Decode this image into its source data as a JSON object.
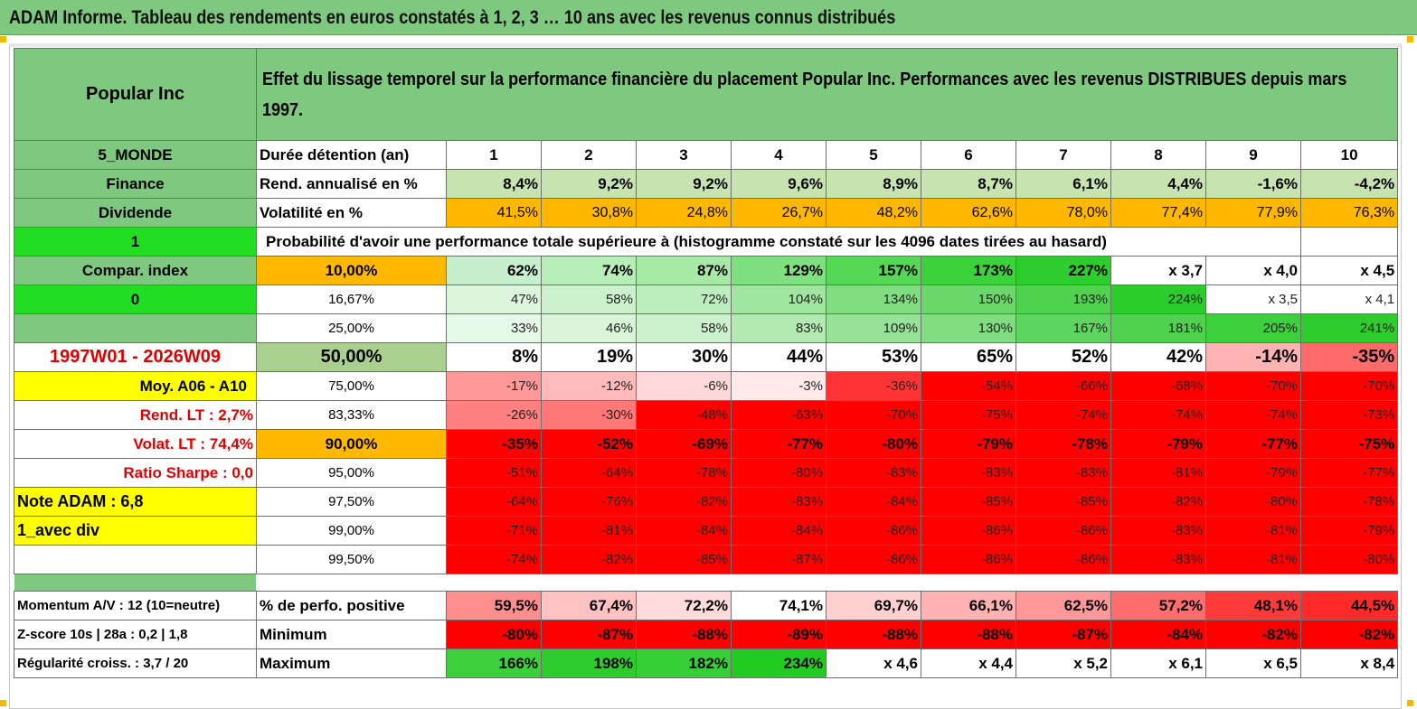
{
  "title": "ADAM Informe. Tableau des rendements en euros constatés à 1, 2, 3 … 10 ans avec les revenus connus distribués",
  "header": {
    "name": "Popular Inc",
    "description": "Effet du lissage temporel sur la performance financière du placement Popular Inc. Performances avec les revenus DISTRIBUES depuis mars 1997."
  },
  "colors": {
    "label_green": "#7ec87f",
    "bright_green": "#22dd22",
    "orange": "#ffb800",
    "yellow": "#ffff00",
    "light_green": "#c6e3b0",
    "olive_green": "#a9d08e",
    "red": "#ff0000"
  },
  "rows": [
    {
      "left": "5_MONDE",
      "label": "Durée détention (an)",
      "cells": [
        "1",
        "2",
        "3",
        "4",
        "5",
        "6",
        "7",
        "8",
        "9",
        "10"
      ]
    },
    {
      "left": "Finance",
      "label": "Rend. annualisé en %",
      "cells": [
        "8,4%",
        "9,2%",
        "9,2%",
        "9,6%",
        "8,9%",
        "8,7%",
        "6,1%",
        "4,4%",
        "-1,6%",
        "-4,2%"
      ]
    },
    {
      "left": "Dividende",
      "label": "Volatilité en %",
      "cells": [
        "41,5%",
        "30,8%",
        "24,8%",
        "26,7%",
        "48,2%",
        "62,6%",
        "78,0%",
        "77,4%",
        "77,9%",
        "76,3%"
      ]
    },
    {
      "left": "1",
      "label": "Probabilité d'avoir une performance totale supérieure à (histogramme constaté sur les 4096 dates tirées au hasard)"
    },
    {
      "left": "Compar. index",
      "label": "10,00%",
      "cells": [
        "62%",
        "74%",
        "87%",
        "129%",
        "157%",
        "173%",
        "227%",
        "x 3,7",
        "x 4,0",
        "x 4,5"
      ]
    },
    {
      "left": "0",
      "label": "16,67%",
      "cells": [
        "47%",
        "58%",
        "72%",
        "104%",
        "134%",
        "150%",
        "193%",
        "224%",
        "x 3,5",
        "x 4,1"
      ]
    },
    {
      "left": "",
      "label": "25,00%",
      "cells": [
        "33%",
        "46%",
        "58%",
        "83%",
        "109%",
        "130%",
        "167%",
        "181%",
        "205%",
        "241%"
      ]
    },
    {
      "left": "1997W01 - 2026W09",
      "label": "50,00%",
      "cells": [
        "8%",
        "19%",
        "30%",
        "44%",
        "53%",
        "65%",
        "52%",
        "42%",
        "-14%",
        "-35%"
      ]
    },
    {
      "left": "Moy. A06 - A10",
      "label": "75,00%",
      "cells": [
        "-17%",
        "-12%",
        "-6%",
        "-3%",
        "-36%",
        "-54%",
        "-66%",
        "-68%",
        "-70%",
        "-70%"
      ]
    },
    {
      "left": "Rend. LT :   2,7%",
      "label": "83,33%",
      "cells": [
        "-26%",
        "-30%",
        "-48%",
        "-63%",
        "-70%",
        "-75%",
        "-74%",
        "-74%",
        "-74%",
        "-73%"
      ]
    },
    {
      "left": "Volat. LT :   74,4%",
      "label": "90,00%",
      "cells": [
        "-35%",
        "-52%",
        "-69%",
        "-77%",
        "-80%",
        "-79%",
        "-78%",
        "-79%",
        "-77%",
        "-75%"
      ]
    },
    {
      "left": "Ratio Sharpe :    0,0",
      "label": "95,00%",
      "cells": [
        "-51%",
        "-64%",
        "-78%",
        "-80%",
        "-83%",
        "-83%",
        "-83%",
        "-81%",
        "-79%",
        "-77%"
      ]
    },
    {
      "left": "Note ADAM : 6,8",
      "label": "97,50%",
      "cells": [
        "-64%",
        "-76%",
        "-82%",
        "-83%",
        "-84%",
        "-85%",
        "-85%",
        "-82%",
        "-80%",
        "-78%"
      ]
    },
    {
      "left": "1_avec div",
      "label": "99,00%",
      "cells": [
        "-71%",
        "-81%",
        "-84%",
        "-84%",
        "-86%",
        "-86%",
        "-86%",
        "-83%",
        "-81%",
        "-79%"
      ]
    },
    {
      "left": "",
      "label": "99,50%",
      "cells": [
        "-74%",
        "-82%",
        "-85%",
        "-87%",
        "-86%",
        "-86%",
        "-86%",
        "-83%",
        "-81%",
        "-80%"
      ]
    },
    {
      "left": "",
      "label": ""
    },
    {
      "left": "Momentum A/V : 12 (10=neutre)",
      "label": "% de perfo. positive",
      "cells": [
        "59,5%",
        "67,4%",
        "72,2%",
        "74,1%",
        "69,7%",
        "66,1%",
        "62,5%",
        "57,2%",
        "48,1%",
        "44,5%"
      ]
    },
    {
      "left": "Z-score 10s | 28a : 0,2 | 1,8",
      "label": "Minimum",
      "cells": [
        "-80%",
        "-87%",
        "-88%",
        "-89%",
        "-88%",
        "-88%",
        "-87%",
        "-84%",
        "-82%",
        "-82%"
      ]
    },
    {
      "left": "Régularité croiss. : 3,7 / 20",
      "label": "Maximum",
      "cells": [
        "166%",
        "198%",
        "182%",
        "234%",
        "x 4,6",
        "x 4,4",
        "x 5,2",
        "x 6,1",
        "x 6,5",
        "x 8,4"
      ]
    }
  ]
}
